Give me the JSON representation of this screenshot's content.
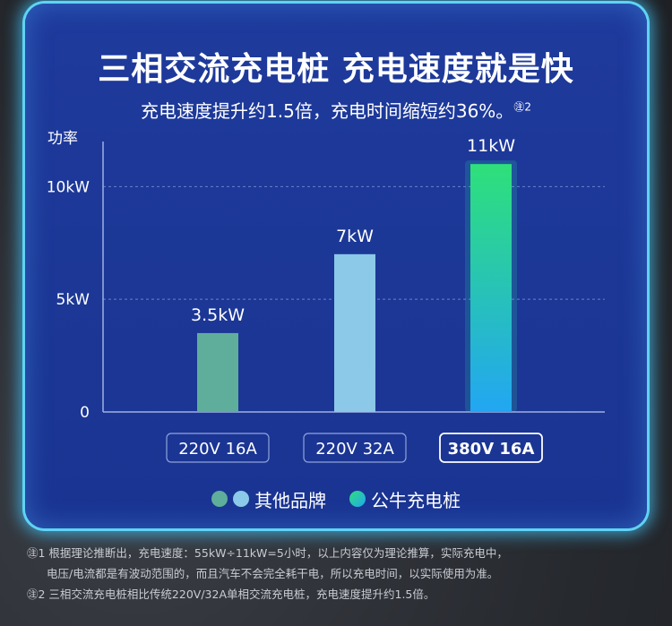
{
  "title": "三相交流充电桩 充电速度就是快",
  "subtitle": "充电速度提升约1.5倍，充电时间缩短约36%。",
  "subtitle_note_mark": "㊟2",
  "legend": {
    "other_label": "其他品牌",
    "gongniu_label": "公牛充电桩"
  },
  "footnotes": {
    "line1": "㊟1 根据理论推断出，充电速度：55kW÷11kW=5小时，以上内容仅为理论推算，实际充电中，",
    "line2": "电压/电流都是有波动范围的，而且汽车不会完全耗干电，所以充电时间，以实际使用为准。",
    "line3": "㊟2 三相交流充电桩相比传统220V/32A单相交流充电桩，充电速度提升约1.5倍。"
  },
  "colors": {
    "bar1": "#5fae9b",
    "bar2": "#8cc8e8",
    "bar3_top": "#2ee07a",
    "bar3_bottom": "#22a6f2",
    "dot1": "#5fae9b",
    "dot2": "#8cc8e8",
    "dot3_a": "#2ee07a",
    "dot3_b": "#22a6f2"
  },
  "chart_data": {
    "type": "bar",
    "ylabel": "功率",
    "ylim": [
      0,
      12
    ],
    "yticks": [
      {
        "value": 0,
        "label": "0"
      },
      {
        "value": 5,
        "label": "5kW"
      },
      {
        "value": 10,
        "label": "10kW"
      }
    ],
    "grid": true,
    "categories": [
      "220V 16A",
      "220V 32A",
      "380V 16A"
    ],
    "values": [
      3.5,
      7,
      11
    ],
    "data_labels": [
      "3.5kW",
      "7kW",
      "11kW"
    ],
    "highlight_index": 2
  }
}
